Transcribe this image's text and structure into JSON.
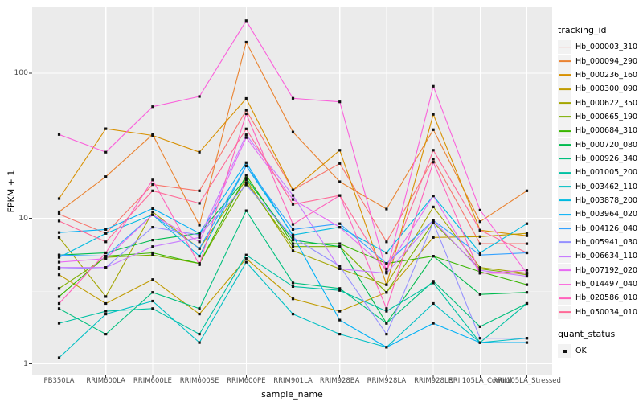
{
  "style": {
    "panel_bg": "#EBEBEB",
    "grid_major": "#FFFFFF",
    "grid_minor": "#FFFFFF",
    "axis_text_color": "#4d4d4d",
    "point_color": "#111111",
    "legend_key_bg": "#F2F2F2"
  },
  "chart_data": {
    "type": "line",
    "title": "",
    "xlabel": "sample_name",
    "ylabel": "FPKM + 1",
    "y_scale": "log10",
    "ylim": [
      0.86,
      280
    ],
    "y_ticks": [
      1,
      10,
      100
    ],
    "y_minor_ticks": [
      3.162,
      31.62
    ],
    "grid": true,
    "marker": "black-square",
    "legend_position": "right",
    "legend": {
      "tracking_title": "tracking_id",
      "quant_title": "quant_status",
      "quant_items": [
        {
          "label": "OK",
          "marker_color": "#111111"
        }
      ]
    },
    "categories": [
      "PB350LA",
      "RRIM600LA",
      "RRIM600LE",
      "RRIM600SE",
      "RRIM600PE",
      "RRIM901LA",
      "RRIM928BA",
      "RRIM928LA",
      "RRIM928LE",
      "RRII105LA_Control",
      "RRII105LA_Stressed"
    ],
    "series": [
      {
        "name": "Hb_000003_310",
        "color": "#F8766D",
        "values": [
          10.7,
          7.9,
          17.1,
          15.5,
          55.5,
          15.7,
          23.9,
          6.9,
          25.6,
          6.7,
          6.7
        ]
      },
      {
        "name": "Hb_000094_290",
        "color": "#EA8331",
        "values": [
          11.1,
          19.4,
          37.8,
          9.0,
          163,
          39.3,
          17.9,
          11.6,
          40.8,
          9.5,
          15.5
        ]
      },
      {
        "name": "Hb_000236_160",
        "color": "#D89000",
        "values": [
          13.7,
          41.4,
          37.2,
          28.6,
          66.9,
          15.7,
          29.5,
          3.5,
          52.0,
          8.3,
          7.6
        ]
      },
      {
        "name": "Hb_000300_090",
        "color": "#C09B00",
        "values": [
          4.1,
          2.6,
          3.8,
          2.2,
          5.3,
          2.8,
          2.3,
          3.1,
          7.4,
          7.5,
          7.9
        ]
      },
      {
        "name": "Hb_000622_350",
        "color": "#A3A500",
        "values": [
          7.4,
          2.9,
          11.1,
          6.2,
          18.5,
          6.0,
          4.5,
          3.5,
          12.0,
          4.6,
          4.2
        ]
      },
      {
        "name": "Hb_000665_190",
        "color": "#7CAE00",
        "values": [
          3.3,
          5.4,
          5.6,
          4.9,
          17.7,
          6.4,
          6.4,
          3.1,
          9.4,
          4.5,
          4.1
        ]
      },
      {
        "name": "Hb_000684_310",
        "color": "#39B600",
        "values": [
          2.9,
          5.5,
          5.8,
          4.9,
          19.8,
          6.7,
          6.7,
          4.9,
          5.5,
          4.3,
          3.5
        ]
      },
      {
        "name": "Hb_000720_080",
        "color": "#00BB4E",
        "values": [
          5.6,
          5.8,
          7.1,
          7.9,
          18.9,
          7.1,
          6.4,
          1.9,
          5.5,
          3.0,
          3.1
        ]
      },
      {
        "name": "Hb_000926_340",
        "color": "#00BF7D",
        "values": [
          2.4,
          1.6,
          3.1,
          2.4,
          11.3,
          3.6,
          3.3,
          1.9,
          3.7,
          1.8,
          2.6
        ]
      },
      {
        "name": "Hb_001005_200",
        "color": "#00C1A3",
        "values": [
          1.9,
          2.3,
          2.4,
          1.6,
          5.6,
          3.4,
          3.2,
          2.3,
          3.6,
          1.4,
          2.6
        ]
      },
      {
        "name": "Hb_003462_110",
        "color": "#00BFC4",
        "values": [
          1.1,
          2.2,
          2.7,
          1.4,
          5.0,
          2.2,
          1.6,
          1.3,
          2.6,
          1.4,
          1.5
        ]
      },
      {
        "name": "Hb_003878_200",
        "color": "#00BAE0",
        "values": [
          5.4,
          7.9,
          10.6,
          5.5,
          23.0,
          7.7,
          8.7,
          5.8,
          14.3,
          5.8,
          9.2
        ]
      },
      {
        "name": "Hb_003964_020",
        "color": "#00B0F6",
        "values": [
          8.0,
          8.4,
          11.7,
          7.9,
          24.2,
          7.6,
          2.0,
          1.3,
          1.9,
          1.4,
          1.4
        ]
      },
      {
        "name": "Hb_004126_040",
        "color": "#35A2FF",
        "values": [
          5.6,
          5.5,
          10.6,
          6.2,
          23.0,
          8.4,
          9.2,
          4.9,
          9.7,
          5.6,
          5.8
        ]
      },
      {
        "name": "Hb_005941_030",
        "color": "#9590FF",
        "values": [
          4.5,
          4.6,
          8.7,
          7.7,
          17.0,
          7.4,
          4.7,
          1.6,
          9.4,
          1.5,
          1.5
        ]
      },
      {
        "name": "Hb_006634_110",
        "color": "#C77CFF",
        "values": [
          4.6,
          4.6,
          6.4,
          7.4,
          37.6,
          14.4,
          4.5,
          4.2,
          9.7,
          4.4,
          4.0
        ]
      },
      {
        "name": "Hb_007192_020",
        "color": "#E76BF3",
        "values": [
          5.0,
          5.3,
          10.6,
          6.9,
          36.0,
          13.5,
          8.7,
          4.5,
          14.3,
          4.2,
          4.4
        ]
      },
      {
        "name": "Hb_014497_040",
        "color": "#FA62DB",
        "values": [
          37.8,
          28.6,
          58.7,
          69.0,
          229,
          67.0,
          63.4,
          4.3,
          81.1,
          11.4,
          4.2
        ]
      },
      {
        "name": "Hb_020586_010",
        "color": "#FF62BC",
        "values": [
          2.6,
          5.8,
          18.4,
          4.8,
          52.5,
          9.1,
          14.4,
          2.4,
          24.4,
          4.2,
          4.2
        ]
      },
      {
        "name": "Hb_050034_010",
        "color": "#FF6A98",
        "values": [
          9.6,
          6.9,
          15.5,
          12.7,
          41.3,
          12.5,
          14.4,
          4.3,
          29.5,
          8.3,
          5.8
        ]
      }
    ]
  }
}
